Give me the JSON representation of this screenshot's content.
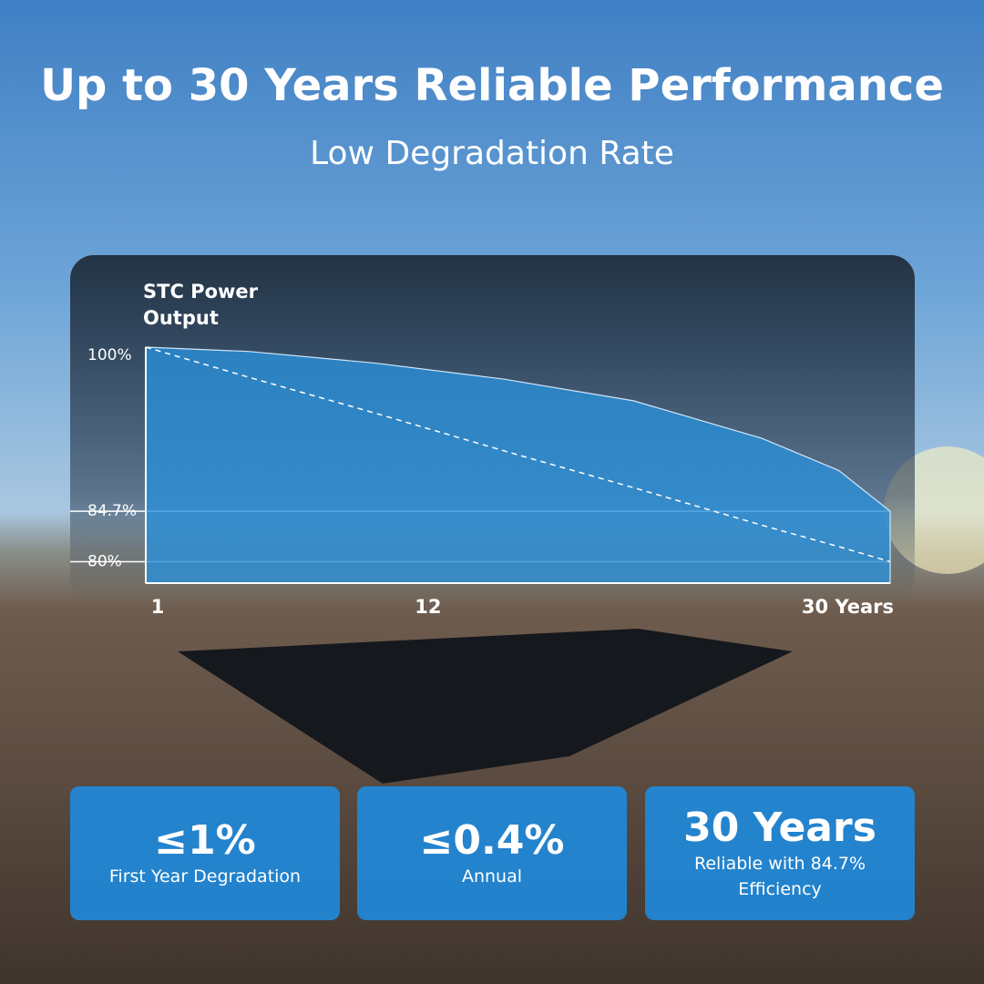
{
  "title": "Up to 30 Years Reliable Performance",
  "subtitle": "Low Degradation Rate",
  "chart_data": {
    "type": "area",
    "y_label": [
      "STC Power",
      "Output"
    ],
    "x": [
      1,
      5,
      10,
      15,
      20,
      25,
      28,
      30
    ],
    "series": [
      {
        "color": "#2a90d8",
        "values": [
          100,
          99.6,
          98.5,
          97,
          95,
          91.5,
          88.5,
          84.7
        ]
      },
      {
        "color": "#ffffff",
        "dashed": true,
        "values": [
          100,
          97.2,
          93.8,
          90.3,
          86.9,
          83.4,
          81.4,
          80
        ]
      }
    ],
    "xlim": [
      1,
      30
    ],
    "xticks": [
      1,
      12,
      {
        "value": 30,
        "label": "30 Years"
      }
    ],
    "ylim": [
      78,
      100
    ],
    "yticks": [
      {
        "value": 100,
        "label": "100%"
      },
      {
        "value": 84.7,
        "label": "84.7%"
      },
      {
        "value": 80,
        "label": "80%"
      }
    ],
    "grid": true
  },
  "cards": [
    {
      "value": "≤1%",
      "label": "First Year Degradation"
    },
    {
      "value": "≤0.4%",
      "label": "Annual"
    },
    {
      "value": "30 Years",
      "label": "Reliable with 84.7% Efficiency"
    }
  ]
}
